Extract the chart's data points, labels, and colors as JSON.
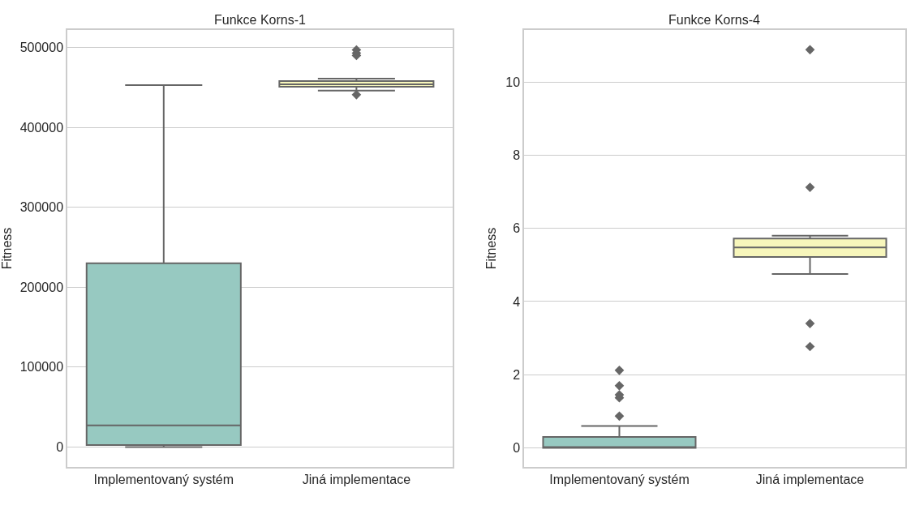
{
  "chart_data": [
    {
      "type": "box",
      "title": "Funkce Korns-1",
      "ylabel": "Fitness",
      "categories": [
        "Implementovaný systém",
        "Jiná implementace"
      ],
      "colors": [
        "#97c9c1",
        "#f7f6bb"
      ],
      "grid": "y",
      "ylim": [
        -25000,
        522000
      ],
      "yticks": [
        0,
        100000,
        200000,
        300000,
        400000,
        500000
      ],
      "boxes": [
        {
          "low": 0,
          "q1": 2500,
          "median": 27000,
          "q3": 230000,
          "high": 453000
        },
        {
          "low": 446000,
          "q1": 451000,
          "median": 454000,
          "q3": 458000,
          "high": 461000,
          "outliers": [
            441000,
            490000,
            493000,
            497000
          ]
        }
      ]
    },
    {
      "type": "box",
      "title": "Funkce Korns-4",
      "ylabel": "Fitness",
      "categories": [
        "Implementovaný systém",
        "Jiná implementace"
      ],
      "colors": [
        "#97c9c1",
        "#f7f6bb"
      ],
      "grid": "y",
      "ylim": [
        -0.52,
        11.42
      ],
      "yticks": [
        0,
        2,
        4,
        6,
        8,
        10
      ],
      "boxes": [
        {
          "low": 0,
          "q1": 0,
          "median": 0.02,
          "q3": 0.3,
          "high": 0.6,
          "outliers": [
            0.87,
            1.37,
            1.45,
            1.7,
            2.12
          ]
        },
        {
          "low": 4.75,
          "q1": 5.22,
          "median": 5.48,
          "q3": 5.72,
          "high": 5.8,
          "outliers": [
            2.77,
            3.4,
            7.12,
            10.88
          ]
        }
      ]
    }
  ]
}
